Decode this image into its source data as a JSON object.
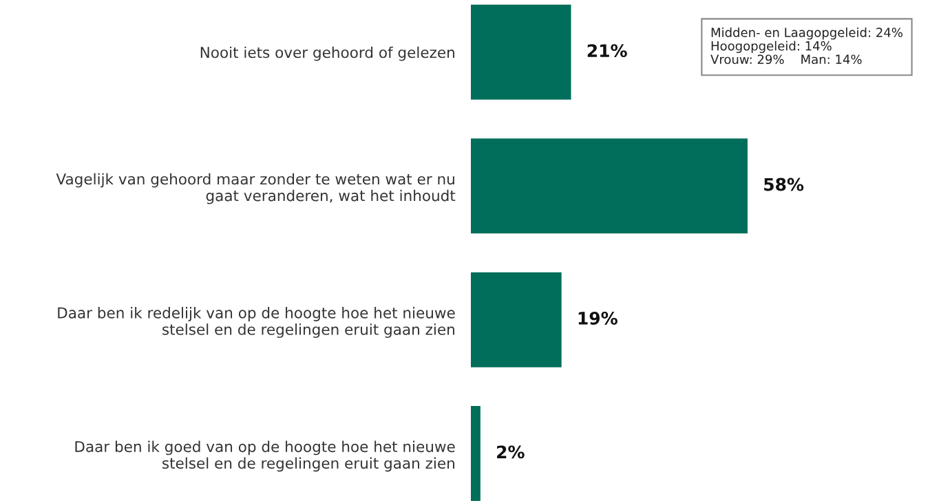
{
  "chart_data": {
    "type": "bar",
    "orientation": "horizontal",
    "categories": [
      "Nooit iets over gehoord of gelezen",
      "Vagelijk van gehoord maar zonder te weten wat er nu\ngaat veranderen, wat het inhoudt",
      "Daar ben ik redelijk van op de hoogte hoe het nieuwe\nstelsel en de regelingen eruit gaan zien",
      "Daar ben ik goed van op de hoogte hoe het nieuwe\nstelsel en de regelingen eruit gaan zien"
    ],
    "values": [
      21,
      58,
      19,
      2
    ],
    "value_labels": [
      "21%",
      "58%",
      "19%",
      "2%"
    ],
    "color": "#006e5a",
    "tick_labels": "y",
    "grid": false,
    "legend": false,
    "annotations": [
      "Midden- en Laagopgeleid: 24%\nHoogopgeleid: 14%\nVrouw: 29%    Man: 14%"
    ]
  }
}
